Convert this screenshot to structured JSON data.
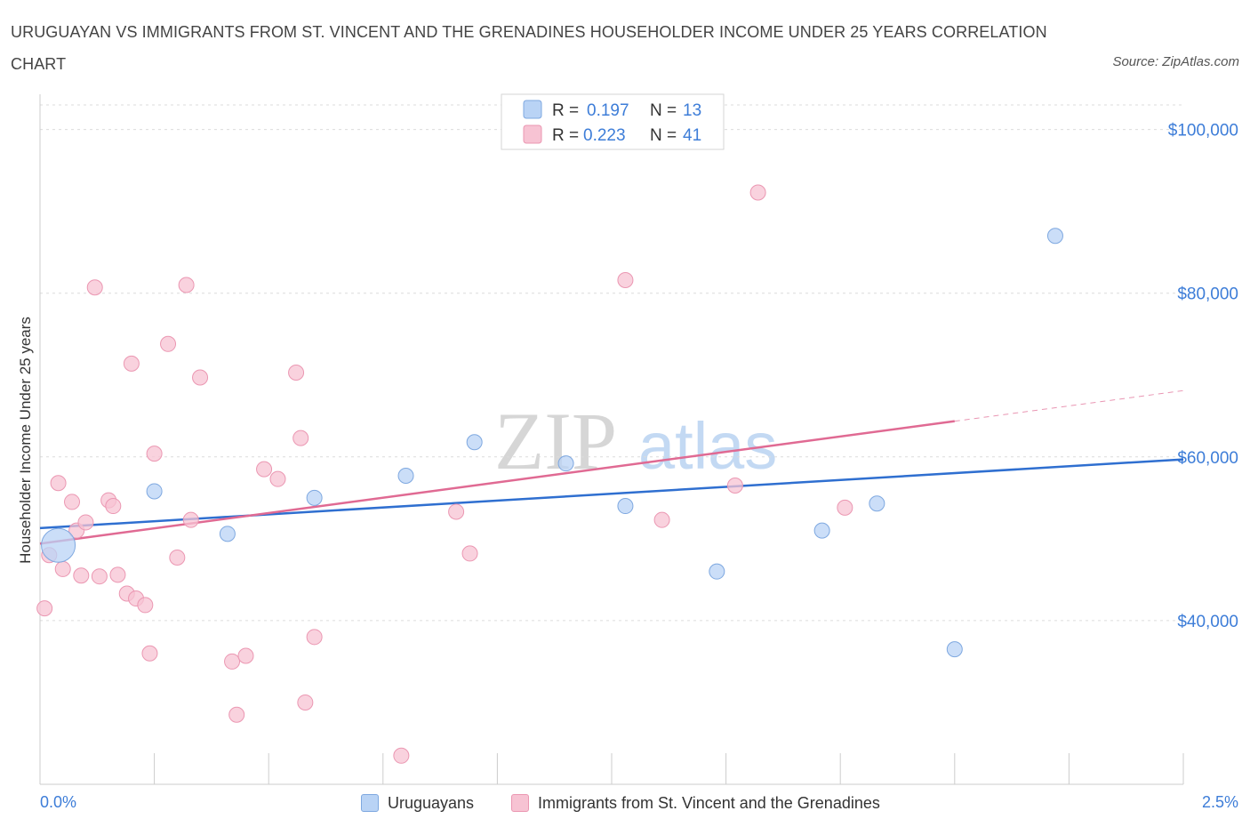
{
  "header": {
    "title": "URUGUAYAN VS IMMIGRANTS FROM ST. VINCENT AND THE GRENADINES HOUSEHOLDER INCOME UNDER 25 YEARS CORRELATION CHART",
    "source": "Source: ZipAtlas.com"
  },
  "watermark": {
    "part1": "ZIP",
    "part2": "atlas"
  },
  "legend": {
    "r_label": "R =",
    "n_label": "N =",
    "series": [
      {
        "r": "0.197",
        "n": "13"
      },
      {
        "r": "0.223",
        "n": "41"
      }
    ]
  },
  "colors": {
    "blue_fill": "#b9d3f5",
    "blue_stroke": "#7ea8e0",
    "blue_line": "#2f6fd0",
    "pink_fill": "#f7c3d3",
    "pink_stroke": "#eb97b2",
    "pink_line": "#e06a93",
    "axis_text": "#3d7dd8",
    "grid": "#dcdcdc"
  },
  "chart_data": {
    "type": "scatter",
    "title": "URUGUAYAN VS IMMIGRANTS FROM ST. VINCENT AND THE GRENADINES HOUSEHOLDER INCOME UNDER 25 YEARS CORRELATION CHART",
    "xlabel": "",
    "ylabel": "Householder Income Under 25 years",
    "xlim": [
      0,
      2.5
    ],
    "ylim": [
      20000,
      103000
    ],
    "x_tick_labels": [
      "0.0%",
      "2.5%"
    ],
    "y_ticks": [
      40000,
      60000,
      80000,
      100000
    ],
    "y_tick_labels": [
      "$40,000",
      "$60,000",
      "$80,000",
      "$100,000"
    ],
    "legend_position": "top-center",
    "series": [
      {
        "name": "Uruguayans",
        "color": "blue",
        "R": 0.197,
        "N": 13,
        "trend": {
          "x0": 0,
          "y0": 51300,
          "x1": 2.5,
          "y1": 59700,
          "dashed_from": null
        },
        "points": [
          {
            "x": 0.04,
            "y": 49200,
            "big": true
          },
          {
            "x": 0.25,
            "y": 55800
          },
          {
            "x": 0.41,
            "y": 50600
          },
          {
            "x": 0.6,
            "y": 55000
          },
          {
            "x": 0.8,
            "y": 57700
          },
          {
            "x": 0.95,
            "y": 61800
          },
          {
            "x": 1.15,
            "y": 59200
          },
          {
            "x": 1.28,
            "y": 54000
          },
          {
            "x": 1.48,
            "y": 46000
          },
          {
            "x": 1.71,
            "y": 51000
          },
          {
            "x": 1.83,
            "y": 54300
          },
          {
            "x": 2.0,
            "y": 36500
          },
          {
            "x": 2.22,
            "y": 87000
          }
        ]
      },
      {
        "name": "Immigrants from St. Vincent and the Grenadines",
        "color": "pink",
        "R": 0.223,
        "N": 41,
        "trend": {
          "x0": 0,
          "y0": 49400,
          "x1": 2.5,
          "y1": 68100,
          "dashed_from": 2.0
        },
        "points": [
          {
            "x": 0.01,
            "y": 41500
          },
          {
            "x": 0.02,
            "y": 48000
          },
          {
            "x": 0.04,
            "y": 56800
          },
          {
            "x": 0.05,
            "y": 46300
          },
          {
            "x": 0.07,
            "y": 54500
          },
          {
            "x": 0.08,
            "y": 51000
          },
          {
            "x": 0.09,
            "y": 45500
          },
          {
            "x": 0.1,
            "y": 52000
          },
          {
            "x": 0.12,
            "y": 80700
          },
          {
            "x": 0.13,
            "y": 45400
          },
          {
            "x": 0.15,
            "y": 54700
          },
          {
            "x": 0.16,
            "y": 54000
          },
          {
            "x": 0.17,
            "y": 45600
          },
          {
            "x": 0.19,
            "y": 43300
          },
          {
            "x": 0.2,
            "y": 71400
          },
          {
            "x": 0.21,
            "y": 42700
          },
          {
            "x": 0.23,
            "y": 41900
          },
          {
            "x": 0.24,
            "y": 36000
          },
          {
            "x": 0.25,
            "y": 60400
          },
          {
            "x": 0.28,
            "y": 73800
          },
          {
            "x": 0.3,
            "y": 47700
          },
          {
            "x": 0.32,
            "y": 81000
          },
          {
            "x": 0.33,
            "y": 52300
          },
          {
            "x": 0.35,
            "y": 69700
          },
          {
            "x": 0.42,
            "y": 35000
          },
          {
            "x": 0.43,
            "y": 28500
          },
          {
            "x": 0.45,
            "y": 35700
          },
          {
            "x": 0.49,
            "y": 58500
          },
          {
            "x": 0.52,
            "y": 57300
          },
          {
            "x": 0.56,
            "y": 70300
          },
          {
            "x": 0.57,
            "y": 62300
          },
          {
            "x": 0.58,
            "y": 30000
          },
          {
            "x": 0.6,
            "y": 38000
          },
          {
            "x": 0.79,
            "y": 23500
          },
          {
            "x": 0.91,
            "y": 53300
          },
          {
            "x": 0.94,
            "y": 48200
          },
          {
            "x": 1.28,
            "y": 81600
          },
          {
            "x": 1.36,
            "y": 52300
          },
          {
            "x": 1.52,
            "y": 56500
          },
          {
            "x": 1.57,
            "y": 92300
          },
          {
            "x": 1.76,
            "y": 53800
          }
        ]
      }
    ]
  }
}
